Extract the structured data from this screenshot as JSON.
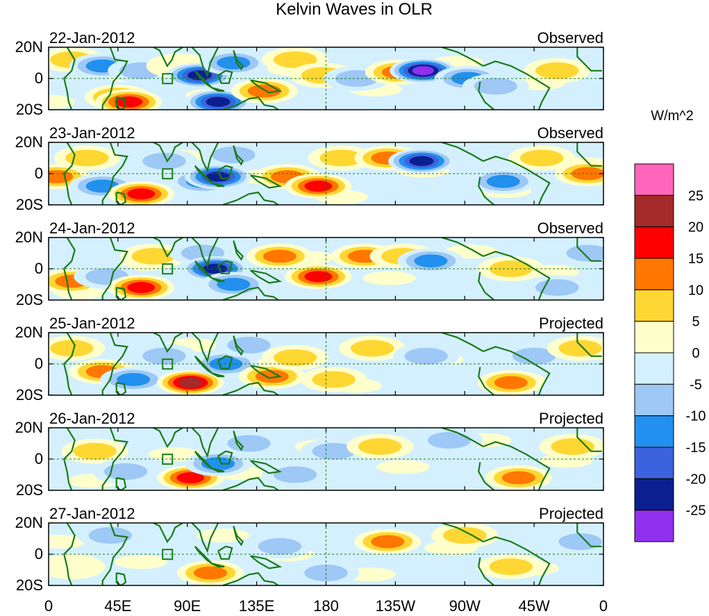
{
  "chart_data": {
    "type": "heatmap",
    "title": "Kelvin Waves in OLR",
    "units": "W/m^2",
    "x_ticks": [
      "0",
      "45E",
      "90E",
      "135E",
      "180",
      "135W",
      "90W",
      "45W",
      "0"
    ],
    "y_ticks": [
      "20N",
      "0",
      "20S"
    ],
    "colorbar": {
      "labels": [
        "25",
        "20",
        "15",
        "10",
        "5",
        "0",
        "-5",
        "-10",
        "-15",
        "-20",
        "-25"
      ],
      "colors": [
        "#ff66bb",
        "#a52a2a",
        "#ff0000",
        "#ff7700",
        "#ffd733",
        "#ffffcc",
        "#d4f0ff",
        "#9ec8f5",
        "#2290ee",
        "#3c63dd",
        "#0c1f90",
        "#9030ee"
      ]
    },
    "panels": [
      {
        "date": "22-Jan-2012",
        "type": "Observed"
      },
      {
        "date": "23-Jan-2012",
        "type": "Observed"
      },
      {
        "date": "24-Jan-2012",
        "type": "Observed"
      },
      {
        "date": "25-Jan-2012",
        "type": "Projected"
      },
      {
        "date": "26-Jan-2012",
        "type": "Projected"
      },
      {
        "date": "27-Jan-2012",
        "type": "Projected"
      }
    ],
    "anomalies": [
      [
        {
          "lon": 15,
          "lat": 12,
          "v": 8
        },
        {
          "lon": 35,
          "lat": 8,
          "v": -10
        },
        {
          "lon": 45,
          "lat": -12,
          "v": 12
        },
        {
          "lon": 52,
          "lat": -15,
          "v": 18
        },
        {
          "lon": 60,
          "lat": 5,
          "v": -6
        },
        {
          "lon": 85,
          "lat": 8,
          "v": 4
        },
        {
          "lon": 98,
          "lat": 2,
          "v": -22
        },
        {
          "lon": 110,
          "lat": -15,
          "v": -20
        },
        {
          "lon": 120,
          "lat": 10,
          "v": -12
        },
        {
          "lon": 140,
          "lat": -8,
          "v": 14
        },
        {
          "lon": 160,
          "lat": 12,
          "v": 9
        },
        {
          "lon": 178,
          "lat": 2,
          "v": 5
        },
        {
          "lon": 200,
          "lat": 0,
          "v": -8
        },
        {
          "lon": 227,
          "lat": 4,
          "v": 14
        },
        {
          "lon": 243,
          "lat": 5,
          "v": -26
        },
        {
          "lon": 272,
          "lat": 0,
          "v": -12
        },
        {
          "lon": 290,
          "lat": -5,
          "v": -8
        },
        {
          "lon": 330,
          "lat": 5,
          "v": 7
        }
      ],
      [
        {
          "lon": 5,
          "lat": -2,
          "v": 14
        },
        {
          "lon": 25,
          "lat": 10,
          "v": 6
        },
        {
          "lon": 35,
          "lat": -8,
          "v": -14
        },
        {
          "lon": 60,
          "lat": -13,
          "v": 15
        },
        {
          "lon": 75,
          "lat": 8,
          "v": -5
        },
        {
          "lon": 100,
          "lat": -5,
          "v": -12
        },
        {
          "lon": 110,
          "lat": -2,
          "v": -22
        },
        {
          "lon": 120,
          "lat": 12,
          "v": -8
        },
        {
          "lon": 155,
          "lat": -2,
          "v": 10
        },
        {
          "lon": 175,
          "lat": -8,
          "v": 15
        },
        {
          "lon": 190,
          "lat": 10,
          "v": 8
        },
        {
          "lon": 220,
          "lat": 10,
          "v": 12
        },
        {
          "lon": 242,
          "lat": 8,
          "v": -22
        },
        {
          "lon": 295,
          "lat": -5,
          "v": -10
        },
        {
          "lon": 320,
          "lat": 10,
          "v": 5
        },
        {
          "lon": 350,
          "lat": 0,
          "v": 10
        }
      ],
      [
        {
          "lon": 15,
          "lat": -8,
          "v": 10
        },
        {
          "lon": 38,
          "lat": -5,
          "v": -9
        },
        {
          "lon": 60,
          "lat": -12,
          "v": 16
        },
        {
          "lon": 68,
          "lat": 8,
          "v": 6
        },
        {
          "lon": 100,
          "lat": 10,
          "v": -8
        },
        {
          "lon": 108,
          "lat": 0,
          "v": -22
        },
        {
          "lon": 120,
          "lat": -10,
          "v": -10
        },
        {
          "lon": 150,
          "lat": 8,
          "v": 10
        },
        {
          "lon": 175,
          "lat": -5,
          "v": 15
        },
        {
          "lon": 205,
          "lat": 8,
          "v": 12
        },
        {
          "lon": 230,
          "lat": 8,
          "v": 9
        },
        {
          "lon": 248,
          "lat": 5,
          "v": -12
        },
        {
          "lon": 300,
          "lat": 0,
          "v": 5
        },
        {
          "lon": 330,
          "lat": -12,
          "v": -6
        },
        {
          "lon": 350,
          "lat": 10,
          "v": -5
        }
      ],
      [
        {
          "lon": 15,
          "lat": 10,
          "v": 5
        },
        {
          "lon": 35,
          "lat": -5,
          "v": 12
        },
        {
          "lon": 55,
          "lat": -10,
          "v": -10
        },
        {
          "lon": 75,
          "lat": 5,
          "v": -5
        },
        {
          "lon": 92,
          "lat": -12,
          "v": 20
        },
        {
          "lon": 115,
          "lat": 0,
          "v": -14
        },
        {
          "lon": 130,
          "lat": 12,
          "v": -7
        },
        {
          "lon": 145,
          "lat": -8,
          "v": 10
        },
        {
          "lon": 160,
          "lat": 4,
          "v": 8
        },
        {
          "lon": 185,
          "lat": -10,
          "v": 9
        },
        {
          "lon": 210,
          "lat": 10,
          "v": 6
        },
        {
          "lon": 245,
          "lat": 5,
          "v": -8
        },
        {
          "lon": 300,
          "lat": -12,
          "v": 10
        },
        {
          "lon": 315,
          "lat": 5,
          "v": -6
        },
        {
          "lon": 345,
          "lat": 10,
          "v": 5
        }
      ],
      [
        {
          "lon": 30,
          "lat": 5,
          "v": 6
        },
        {
          "lon": 50,
          "lat": -8,
          "v": -8
        },
        {
          "lon": 92,
          "lat": -12,
          "v": 17
        },
        {
          "lon": 110,
          "lat": -3,
          "v": -10
        },
        {
          "lon": 130,
          "lat": 10,
          "v": -8
        },
        {
          "lon": 160,
          "lat": -10,
          "v": -6
        },
        {
          "lon": 185,
          "lat": 5,
          "v": -5
        },
        {
          "lon": 215,
          "lat": 8,
          "v": 7
        },
        {
          "lon": 260,
          "lat": 12,
          "v": -6
        },
        {
          "lon": 305,
          "lat": -12,
          "v": 10
        },
        {
          "lon": 340,
          "lat": 8,
          "v": 5
        }
      ],
      [
        {
          "lon": 15,
          "lat": -8,
          "v": 4
        },
        {
          "lon": 40,
          "lat": 12,
          "v": -5
        },
        {
          "lon": 105,
          "lat": -12,
          "v": 12
        },
        {
          "lon": 150,
          "lat": 5,
          "v": -5
        },
        {
          "lon": 180,
          "lat": -12,
          "v": -7
        },
        {
          "lon": 220,
          "lat": 8,
          "v": 10
        },
        {
          "lon": 270,
          "lat": 12,
          "v": 5
        },
        {
          "lon": 300,
          "lat": -8,
          "v": 6
        },
        {
          "lon": 345,
          "lat": 8,
          "v": -5
        }
      ]
    ]
  }
}
